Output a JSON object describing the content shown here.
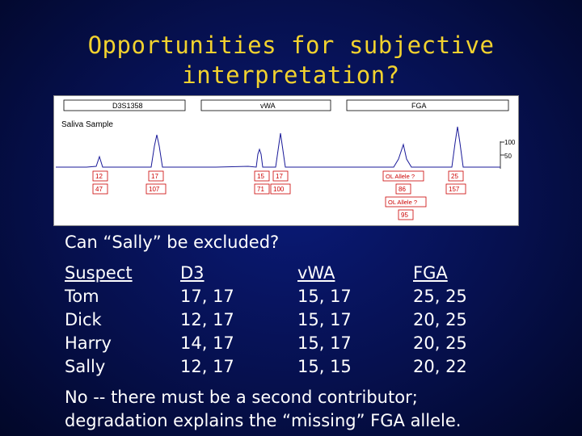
{
  "title": "Opportunities for subjective interpretation?",
  "electropherogram": {
    "loci": [
      "D3S1358",
      "vWA",
      "FGA"
    ],
    "sample_label": "Saliva Sample",
    "scale_labels": [
      "100",
      "50"
    ],
    "allele_labels": [
      "12",
      "17",
      "15",
      "17",
      "OL Allele ?",
      "25"
    ],
    "height_labels": [
      "47",
      "107",
      "71",
      "100",
      "86",
      "157"
    ],
    "extra_allele": "OL Allele ?",
    "extra_height": "95"
  },
  "question": "Can “Sally” be excluded?",
  "table": {
    "headers": [
      "Suspect",
      "D3",
      "vWA",
      "FGA"
    ],
    "rows": [
      [
        "Tom",
        "17, 17",
        "15, 17",
        "25, 25"
      ],
      [
        "Dick",
        "12, 17",
        "15, 17",
        "20, 25"
      ],
      [
        "Harry",
        "14, 17",
        "15, 17",
        "20, 25"
      ],
      [
        "Sally",
        "12, 17",
        "15, 15",
        "20, 22"
      ]
    ]
  },
  "conclusion_line1": "No -- there must be a second contributor;",
  "conclusion_line2": "degradation explains the “missing” FGA allele.",
  "colors": {
    "title": "#f2d22e",
    "background": "#06104e",
    "text": "#ffffff",
    "label_border": "#cc0000",
    "label_text": "#cc0000"
  }
}
